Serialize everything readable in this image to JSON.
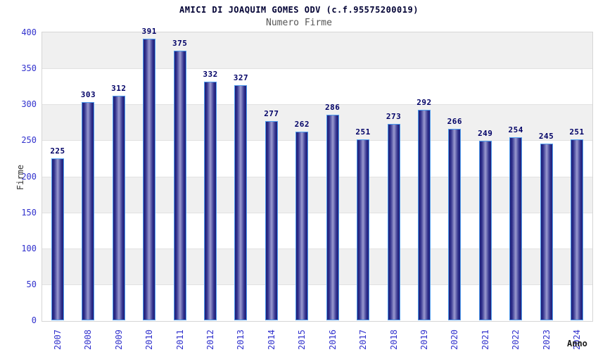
{
  "header": {
    "title": "AMICI DI JOAQUIM GOMES ODV (c.f.95575200019)",
    "subtitle": "Numero Firme"
  },
  "chart_data": {
    "type": "bar",
    "title": "AMICI DI JOAQUIM GOMES ODV (c.f.95575200019)",
    "subtitle": "Numero Firme",
    "categories": [
      "2007",
      "2008",
      "2009",
      "2010",
      "2011",
      "2012",
      "2013",
      "2014",
      "2015",
      "2016",
      "2017",
      "2018",
      "2019",
      "2020",
      "2021",
      "2022",
      "2023",
      "2024"
    ],
    "values": [
      225,
      303,
      312,
      391,
      375,
      332,
      327,
      277,
      262,
      286,
      251,
      273,
      292,
      266,
      249,
      254,
      245,
      251
    ],
    "xlabel": "Anno",
    "ylabel": "Firme",
    "ylim": [
      0,
      400
    ],
    "ytick_step": 50,
    "grid": "alternating-horizontal-bands",
    "legend": "none",
    "colors": {
      "axis_text": "#3232cd",
      "value_label": "#000066",
      "title": "#000033",
      "subtitle": "#555555",
      "band_gray": "#f0f0f0",
      "band_white": "#ffffff",
      "grid_line": "#e2e2e2",
      "plot_border": "#d6d6d6",
      "bar_border": "#4f9dee",
      "bar_edge": "#1e1e78",
      "bar_mid": "#30308c",
      "bar_center": "#9a9ad0",
      "axis_title": "#333333",
      "xlabel_color": "#1a1a1a"
    }
  }
}
